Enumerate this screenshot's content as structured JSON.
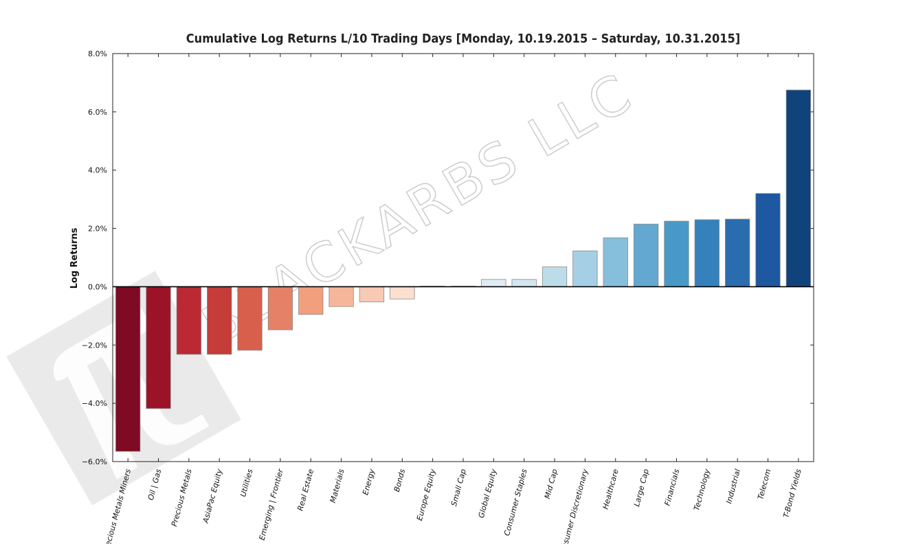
{
  "watermark": {
    "text": "BLACKARBS LLC",
    "logo_name": "tradingcenter-pi-logo-icon"
  },
  "chart_data": {
    "type": "bar",
    "title": "Cumulative Log Returns L/10 Trading Days  [Monday, 10.19.2015 – Saturday, 10.31.2015]",
    "xlabel": "",
    "ylabel": "Log Returns",
    "ylim": [
      -0.06,
      0.08
    ],
    "yticks": [
      0.08,
      0.06,
      0.04,
      0.02,
      0.0,
      -0.02,
      -0.04,
      -0.06
    ],
    "ytick_labels": [
      "8.0%",
      "6.0%",
      "4.0%",
      "2.0%",
      "0.0%",
      "−2.0%",
      "−4.0%",
      "−6.0%"
    ],
    "grid": false,
    "categories": [
      "Precious Metals Miners",
      "Oil | Gas",
      "Precious Metals",
      "AsiaPac Equity",
      "Utilities",
      "Emerging | Frontier",
      "Real Estate",
      "Materials",
      "Energy",
      "Bonds",
      "Europe Equity",
      "Small Cap",
      "Global Equity",
      "Consumer Staples",
      "Mid Cap",
      "Consumer Discretionary",
      "Healthcare",
      "Large Cap",
      "Financials",
      "Technology",
      "Industrial",
      "Telecom",
      "T-Bond Yields"
    ],
    "values": [
      -0.0565,
      -0.0418,
      -0.0232,
      -0.0232,
      -0.0218,
      -0.0148,
      -0.0095,
      -0.0068,
      -0.0052,
      -0.0042,
      0.0002,
      0.0002,
      0.0025,
      0.0025,
      0.0068,
      0.0123,
      0.0168,
      0.0215,
      0.0225,
      0.023,
      0.0232,
      0.032,
      0.0675
    ],
    "colors": [
      "#7e0a23",
      "#9c1328",
      "#bb2a33",
      "#c63c39",
      "#d85f4b",
      "#e58166",
      "#f29f7d",
      "#f6b699",
      "#f9cab3",
      "#fbe0d0",
      "#f3f3f3",
      "#eef4f8",
      "#e0ecf4",
      "#d2e6f0",
      "#bddcea",
      "#a5cfe4",
      "#86bfdb",
      "#63a8d0",
      "#4899c7",
      "#3581bc",
      "#2a6daf",
      "#1d58a0",
      "#10437c"
    ]
  }
}
